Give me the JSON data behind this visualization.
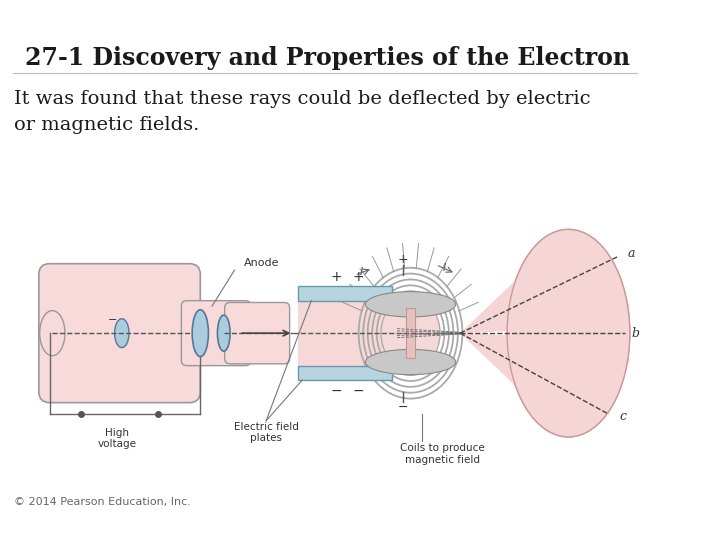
{
  "title": "27-1 Discovery and Properties of the Electron",
  "body_text": "It was found that these rays could be deflected by electric\nor magnetic fields.",
  "copyright": "© 2014 Pearson Education, Inc.",
  "bg_color": "#ffffff",
  "title_fontsize": 17,
  "body_fontsize": 14,
  "copyright_fontsize": 8,
  "title_color": "#1a1a1a",
  "body_color": "#1a1a1a",
  "pink_color": "#f2c4c4",
  "pink_light": "#f8dada",
  "pink_tube": "#f5cccc",
  "blue_color": "#aaccdd",
  "blue_plate": "#b8d4e0",
  "gray_color": "#aaaaaa",
  "dark_color": "#333333",
  "coil_color": "#bbbbbb",
  "screen_color": "#f5d5d5"
}
